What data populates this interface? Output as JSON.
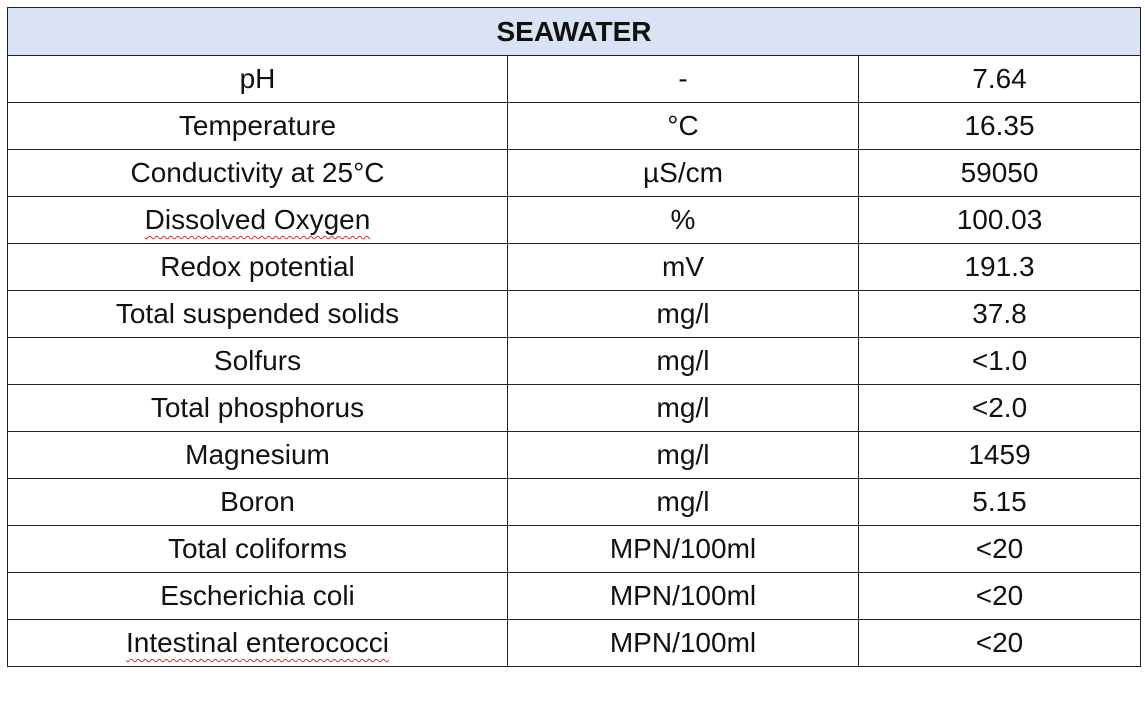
{
  "table": {
    "title": "SEAWATER",
    "rows": [
      {
        "parameter": "pH",
        "unit": "-",
        "value": "7.64",
        "spellcheck": false
      },
      {
        "parameter": "Temperature",
        "unit": "°C",
        "value": "16.35",
        "spellcheck": false
      },
      {
        "parameter": "Conductivity at 25°C",
        "unit": "µS/cm",
        "value": "59050",
        "spellcheck": false
      },
      {
        "parameter": "Dissolved Oxygen",
        "unit": "%",
        "value": "100.03",
        "spellcheck": true
      },
      {
        "parameter": "Redox potential",
        "unit": "mV",
        "value": "191.3",
        "spellcheck": false
      },
      {
        "parameter": "Total suspended solids",
        "unit": "mg/l",
        "value": "37.8",
        "spellcheck": false
      },
      {
        "parameter": "Solfurs",
        "unit": "mg/l",
        "value": "<1.0",
        "spellcheck": false
      },
      {
        "parameter": "Total phosphorus",
        "unit": "mg/l",
        "value": "<2.0",
        "spellcheck": false
      },
      {
        "parameter": "Magnesium",
        "unit": "mg/l",
        "value": "1459",
        "spellcheck": false
      },
      {
        "parameter": "Boron",
        "unit": "mg/l",
        "value": "5.15",
        "spellcheck": false
      },
      {
        "parameter": "Total coliforms",
        "unit": "MPN/100ml",
        "value": "<20",
        "spellcheck": false
      },
      {
        "parameter": "Escherichia coli",
        "unit": "MPN/100ml",
        "value": "<20",
        "spellcheck": false
      },
      {
        "parameter": "Intestinal enterococci",
        "unit": "MPN/100ml",
        "value": "<20",
        "spellcheck": true
      }
    ],
    "colors": {
      "header_background": "#dae3f3",
      "border": "#222222",
      "spellcheck_underline": "#d0312d"
    }
  }
}
